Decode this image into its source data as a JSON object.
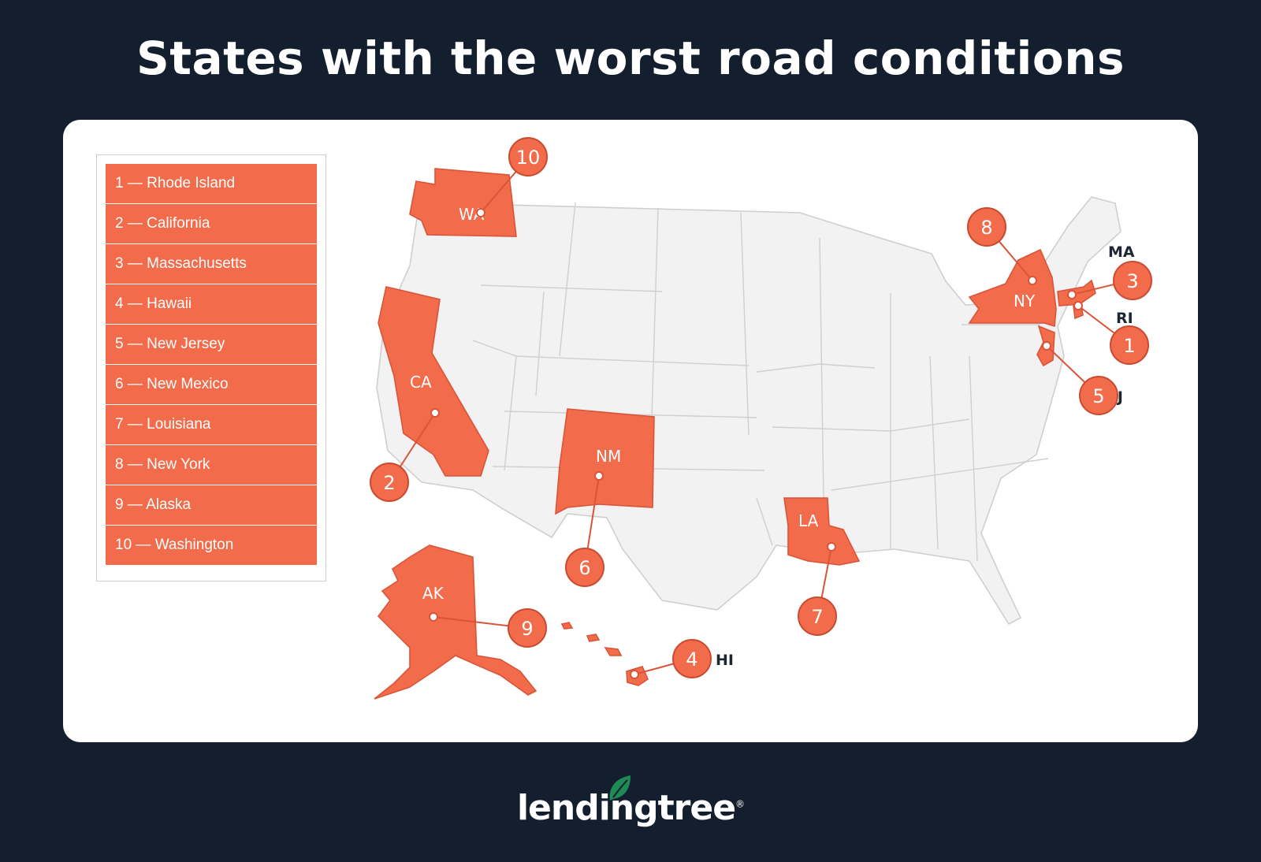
{
  "title": "States with the worst road conditions",
  "legend": [
    "1 — Rhode Island",
    "2 — California",
    "3 — Massachusetts",
    "4 — Hawaii",
    "5 — New Jersey",
    "6 — New Mexico",
    "7 — Louisiana",
    "8 — New York",
    "9 — Alaska",
    "10 — Washington"
  ],
  "states": {
    "WA": {
      "abbr": "WA",
      "rank": "10"
    },
    "CA": {
      "abbr": "CA",
      "rank": "2"
    },
    "NM": {
      "abbr": "NM",
      "rank": "6"
    },
    "LA": {
      "abbr": "LA",
      "rank": "7"
    },
    "NY": {
      "abbr": "NY",
      "rank": "8"
    },
    "MA": {
      "abbr": "MA",
      "rank": "3"
    },
    "RI": {
      "abbr": "RI",
      "rank": "1"
    },
    "NJ": {
      "abbr": "NJ",
      "rank": "5"
    },
    "AK": {
      "abbr": "AK",
      "rank": "9"
    },
    "HI": {
      "abbr": "HI",
      "rank": "4"
    }
  },
  "colors": {
    "background": "#131f2e",
    "highlight": "#f26b4a",
    "base_state": "#f2f2f2",
    "brand_green": "#1e8a55"
  },
  "logo": {
    "text": "lendingtree",
    "mark": "®"
  }
}
